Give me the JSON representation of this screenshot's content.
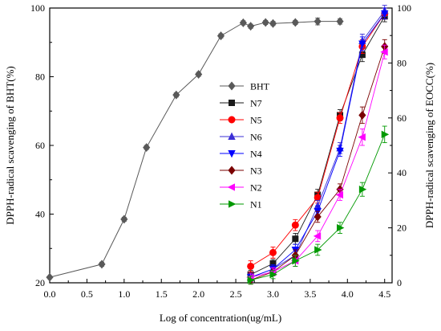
{
  "chart_data": {
    "type": "line",
    "xlabel": "Log of concentration(ug/mL)",
    "ylabel_left": "DPPH-radical scavenging of BHT(%)",
    "ylabel_right": "DPPH-radical scavenging of EOCC(%)",
    "xlim": [
      0.0,
      4.6
    ],
    "ylim_left": [
      20,
      100
    ],
    "ylim_right": [
      0,
      100
    ],
    "x_ticks": [
      "0.0",
      "0.5",
      "1.0",
      "1.5",
      "2.0",
      "2.5",
      "3.0",
      "3.5",
      "4.0",
      "4.5"
    ],
    "y_left_ticks": [
      "20",
      "40",
      "60",
      "80",
      "100"
    ],
    "y_right_ticks": [
      "0",
      "20",
      "40",
      "60",
      "80",
      "100"
    ],
    "legend_position": "center-left",
    "series": [
      {
        "name": "BHT",
        "axis": "left",
        "color": "#595959",
        "marker": "diamond",
        "x": [
          0.0,
          0.7,
          1.0,
          1.3,
          1.7,
          2.0,
          2.3,
          2.6,
          2.7,
          2.9,
          3.0,
          3.3,
          3.6,
          3.9
        ],
        "y": [
          21.6,
          25.4,
          38.5,
          59.4,
          74.7,
          80.7,
          91.9,
          95.7,
          94.7,
          95.8,
          95.5,
          95.8,
          96.1,
          96.1
        ],
        "err": [
          0,
          0.6,
          0.6,
          0.6,
          0.6,
          0.6,
          0.6,
          0.6,
          0.6,
          0.6,
          0.6,
          0.6,
          1.0,
          0.8
        ]
      },
      {
        "name": "N7",
        "axis": "right",
        "color": "#1a1a1a",
        "marker": "square",
        "x": [
          2.7,
          3.0,
          3.3,
          3.6,
          3.9,
          4.2,
          4.5
        ],
        "y": [
          3,
          7,
          16,
          32,
          61,
          83,
          97
        ],
        "err": [
          1.5,
          1.5,
          2,
          2,
          2,
          2.5,
          2
        ]
      },
      {
        "name": "N5",
        "axis": "right",
        "color": "#ff0000",
        "marker": "circle",
        "x": [
          2.7,
          3.0,
          3.3,
          3.6,
          3.9,
          4.2,
          4.5
        ],
        "y": [
          6,
          11,
          21,
          31,
          60,
          86,
          98
        ],
        "err": [
          2,
          2,
          2,
          2,
          2,
          2.5,
          2
        ]
      },
      {
        "name": "N6",
        "axis": "right",
        "color": "#3b2fd6",
        "marker": "triangle-up",
        "x": [
          2.7,
          3.0,
          3.3,
          3.6,
          3.9,
          4.2,
          4.5
        ],
        "y": [
          2,
          5,
          10,
          28,
          49,
          88,
          99
        ],
        "err": [
          1.5,
          1.5,
          2,
          2,
          2,
          2.5,
          2
        ]
      },
      {
        "name": "N4",
        "axis": "right",
        "color": "#0000ff",
        "marker": "triangle-down",
        "x": [
          2.7,
          3.0,
          3.3,
          3.6,
          3.9,
          4.2,
          4.5
        ],
        "y": [
          2,
          5,
          12,
          26,
          48,
          87,
          98
        ],
        "err": [
          1.5,
          1.5,
          2,
          2,
          2,
          2.5,
          2
        ]
      },
      {
        "name": "N3",
        "axis": "right",
        "color": "#7a0000",
        "marker": "diamond",
        "x": [
          2.7,
          3.0,
          3.3,
          3.6,
          3.9,
          4.2,
          4.5
        ],
        "y": [
          1,
          4,
          10,
          24,
          34,
          61,
          86
        ],
        "err": [
          1.5,
          1.5,
          2,
          2,
          2,
          3,
          2.5
        ]
      },
      {
        "name": "N2",
        "axis": "right",
        "color": "#ff00ff",
        "marker": "triangle-left",
        "x": [
          2.7,
          3.0,
          3.3,
          3.6,
          3.9,
          4.2,
          4.5
        ],
        "y": [
          2,
          4,
          8,
          17,
          32,
          53,
          84
        ],
        "err": [
          1.5,
          1.5,
          2,
          2,
          2,
          3,
          2.5
        ]
      },
      {
        "name": "N1",
        "axis": "right",
        "color": "#009900",
        "marker": "triangle-right",
        "x": [
          2.7,
          3.0,
          3.3,
          3.6,
          3.9,
          4.2,
          4.5
        ],
        "y": [
          1,
          3,
          8,
          12,
          20,
          34,
          54
        ],
        "err": [
          1.5,
          1.5,
          2,
          2,
          2,
          2.5,
          3
        ]
      }
    ]
  }
}
